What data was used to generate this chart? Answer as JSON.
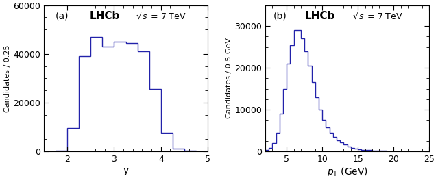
{
  "plot_a": {
    "label": "(a)",
    "xlabel": "y",
    "ylabel": "Candidates / 0.25",
    "xlim": [
      1.5,
      5.0
    ],
    "ylim": [
      0,
      60000
    ],
    "yticks": [
      0,
      20000,
      40000,
      60000
    ],
    "xticks": [
      2,
      3,
      4,
      5
    ],
    "bin_edges": [
      1.5,
      1.75,
      2.0,
      2.25,
      2.5,
      2.75,
      3.0,
      3.25,
      3.5,
      3.75,
      4.0,
      4.25,
      4.5,
      4.75,
      5.0
    ],
    "bin_values": [
      50,
      200,
      9500,
      39000,
      47000,
      43000,
      45000,
      44500,
      41000,
      25500,
      7500,
      1200,
      200,
      50
    ],
    "color": "#2222aa",
    "lhcb_text": "LHCb",
    "energy_text": "$\\sqrt{s}$ = 7 TeV"
  },
  "plot_b": {
    "label": "(b)",
    "xlabel": "$p_{\\mathrm{T}}$ (GeV)",
    "ylabel": "Candidates / 0.5 GeV",
    "xlim": [
      2.0,
      25.0
    ],
    "ylim": [
      0,
      35000
    ],
    "yticks": [
      0,
      10000,
      20000,
      30000
    ],
    "xticks": [
      5,
      10,
      15,
      20,
      25
    ],
    "bin_edges": [
      2.0,
      2.5,
      3.0,
      3.5,
      4.0,
      4.5,
      5.0,
      5.5,
      6.0,
      6.5,
      7.0,
      7.5,
      8.0,
      8.5,
      9.0,
      9.5,
      10.0,
      10.5,
      11.0,
      11.5,
      12.0,
      12.5,
      13.0,
      13.5,
      14.0,
      14.5,
      15.0,
      15.5,
      16.0,
      16.5,
      17.0,
      17.5,
      18.0,
      18.5,
      19.0,
      19.5,
      20.0,
      20.5,
      21.0,
      21.5,
      22.0,
      22.5,
      23.0,
      23.5,
      24.0,
      24.5,
      25.0
    ],
    "bin_values": [
      300,
      800,
      2000,
      4500,
      9000,
      15000,
      21000,
      25500,
      29000,
      29000,
      27000,
      24000,
      20500,
      16500,
      13000,
      10000,
      7500,
      5800,
      4500,
      3500,
      2700,
      2100,
      1600,
      1200,
      900,
      700,
      530,
      410,
      320,
      250,
      195,
      155,
      125,
      100,
      80,
      65,
      52,
      42,
      33,
      26,
      20,
      15,
      11,
      8,
      5,
      3
    ],
    "color": "#2222aa",
    "lhcb_text": "LHCb",
    "energy_text": "$\\sqrt{s}$ = 7 TeV"
  },
  "figure_bg": "#ffffff"
}
